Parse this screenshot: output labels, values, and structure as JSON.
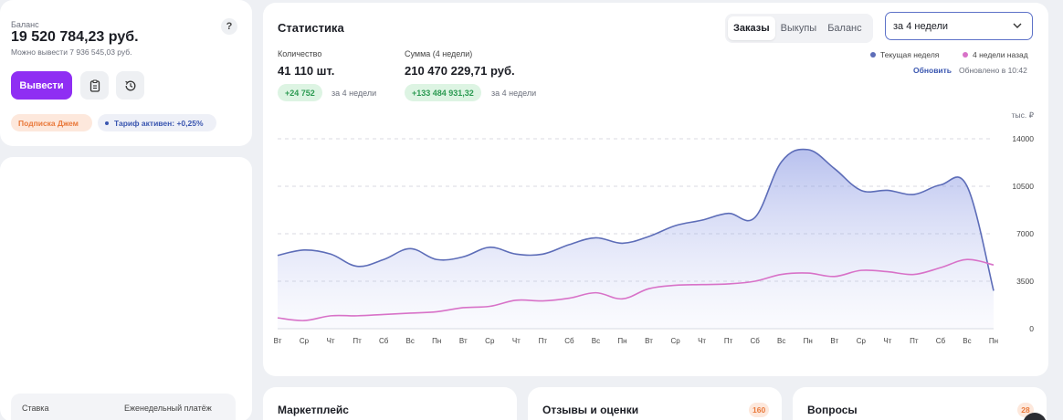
{
  "balance": {
    "label": "Баланс",
    "amount": "19 520 784,23 руб.",
    "available": "Можно вывести 7 936 545,03 руб.",
    "help": "?",
    "withdraw_label": "Вывести",
    "subscription_badge": "Подписка Джем",
    "tariff_badge": "Тариф активен: +0,25%"
  },
  "left_lower": {
    "rate_label": "Ставка",
    "weekly_label": "Еженедельный платёж"
  },
  "stats": {
    "title": "Статистика",
    "tabs": [
      "Заказы",
      "Выкупы",
      "Баланс"
    ],
    "active_tab": "Заказы",
    "period": "за 4 недели",
    "quantity_label": "Количество",
    "quantity_value": "41 110 шт.",
    "quantity_delta": "+24 752",
    "quantity_delta_note": "за 4 недели",
    "sum_label": "Сумма (4 недели)",
    "sum_value": "210 470 229,71 руб.",
    "sum_delta": "+133 484 931,32",
    "sum_delta_note": "за 4 недели",
    "legend_current": "Текущая неделя",
    "legend_previous": "4 недели назад",
    "refresh_label": "Обновить",
    "updated_label": "Обновлено в 10:42"
  },
  "colors": {
    "accent": "#8f2ef3",
    "current_series": "#5d6db8",
    "previous_series": "#d872c8",
    "positive": "#2d9b53"
  },
  "chart_data": {
    "type": "area",
    "unit_label": "тыс. ₽",
    "x": [
      "Вт",
      "Ср",
      "Чт",
      "Пт",
      "Сб",
      "Вс",
      "Пн",
      "Вт",
      "Ср",
      "Чт",
      "Пт",
      "Сб",
      "Вс",
      "Пн",
      "Вт",
      "Ср",
      "Чт",
      "Пт",
      "Сб",
      "Вс",
      "Пн",
      "Вт",
      "Ср",
      "Чт",
      "Пт",
      "Сб",
      "Вс",
      "Пн"
    ],
    "yticks": [
      0,
      3500,
      7000,
      10500,
      14000
    ],
    "ylim": [
      0,
      14000
    ],
    "grid": true,
    "legend": "top-right",
    "series": [
      {
        "name": "Текущая неделя",
        "values": [
          5400,
          5800,
          5500,
          4600,
          5100,
          5900,
          5100,
          5300,
          6000,
          5500,
          5500,
          6200,
          6700,
          6300,
          6800,
          7600,
          8000,
          8500,
          8200,
          12300,
          13200,
          11800,
          10200,
          10200,
          9900,
          10600,
          10500,
          2800
        ]
      },
      {
        "name": "4 недели назад",
        "values": [
          800,
          600,
          950,
          950,
          1050,
          1150,
          1250,
          1550,
          1650,
          2100,
          2050,
          2250,
          2650,
          2200,
          2950,
          3200,
          3250,
          3300,
          3500,
          4000,
          4100,
          3850,
          4300,
          4200,
          4000,
          4500,
          5100,
          4700
        ]
      }
    ]
  },
  "bottom_cards": {
    "marketplace": "Маркетплейс",
    "reviews": "Отзывы и оценки",
    "reviews_badge": "160",
    "questions": "Вопросы",
    "questions_badge": "28"
  }
}
